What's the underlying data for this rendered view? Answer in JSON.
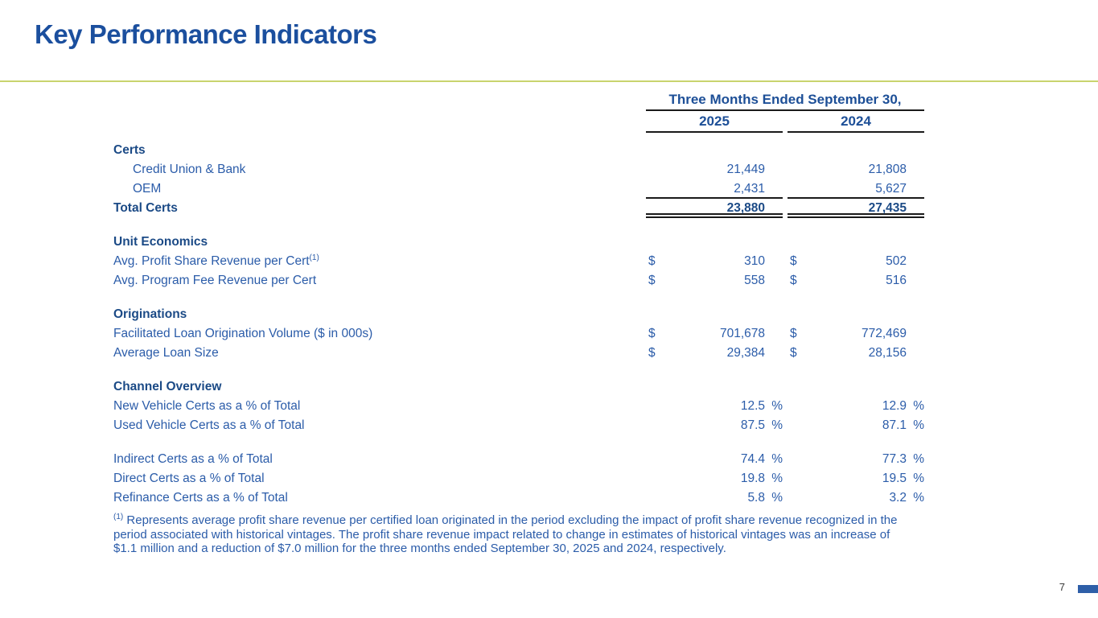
{
  "slide": {
    "title": "Key Performance Indicators",
    "page_number": "7"
  },
  "colors": {
    "title_blue": "#1b4f9e",
    "body_text_blue": "#2b5ca9",
    "bold_text_blue": "#1b4a86",
    "accent_divider_olive": "#c8d46e",
    "table_rule_black": "#1a1a1a",
    "footer_bar_blue": "#2e5fa8"
  },
  "table": {
    "header": {
      "period_label": "Three Months Ended September 30,",
      "col_2025": "2025",
      "col_2024": "2024"
    },
    "rows": [
      {
        "type": "section",
        "label": "Certs"
      },
      {
        "type": "data",
        "indent": true,
        "label": "Credit Union & Bank",
        "v1": "21,449",
        "v2": "21,808"
      },
      {
        "type": "data",
        "indent": true,
        "label": "OEM",
        "v1": "2,431",
        "v2": "5,627",
        "rule_below": true
      },
      {
        "type": "total",
        "label": "Total Certs",
        "v1": "23,880",
        "v2": "27,435"
      },
      {
        "type": "spacer"
      },
      {
        "type": "section",
        "label": "Unit Economics"
      },
      {
        "type": "data",
        "label": "Avg. Profit Share Revenue per Cert",
        "sup": "(1)",
        "d": "$",
        "v1": "310",
        "v2": "502"
      },
      {
        "type": "data",
        "label": "Avg. Program Fee Revenue per Cert",
        "d": "$",
        "v1": "558",
        "v2": "516"
      },
      {
        "type": "spacer"
      },
      {
        "type": "section",
        "label": "Originations"
      },
      {
        "type": "data",
        "label": "Facilitated Loan Origination Volume ($ in 000s)",
        "d": "$",
        "v1": "701,678",
        "v2": "772,469"
      },
      {
        "type": "data",
        "label": "Average Loan Size",
        "d": "$",
        "v1": "29,384",
        "v2": "28,156"
      },
      {
        "type": "spacer"
      },
      {
        "type": "section",
        "label": "Channel Overview"
      },
      {
        "type": "data",
        "label": "New Vehicle Certs as a % of Total",
        "v1": "12.5",
        "p": "%",
        "v2": "12.9"
      },
      {
        "type": "data",
        "label": "Used Vehicle Certs as a % of Total",
        "v1": "87.5",
        "p": "%",
        "v2": "87.1"
      },
      {
        "type": "spacer"
      },
      {
        "type": "data",
        "label": "Indirect Certs as a % of Total",
        "v1": "74.4",
        "p": "%",
        "v2": "77.3"
      },
      {
        "type": "data",
        "label": "Direct Certs as a % of Total",
        "v1": "19.8",
        "p": "%",
        "v2": "19.5"
      },
      {
        "type": "data",
        "label": "Refinance Certs as a % of Total",
        "v1": "5.8",
        "p": "%",
        "v2": "3.2"
      }
    ]
  },
  "footnote": {
    "marker": "(1)",
    "text": "Represents average profit share revenue per certified loan originated in the period excluding the impact of profit share revenue recognized in the period associated with historical vintages. The profit share revenue impact related to change in estimates of historical vintages was an increase of $1.1 million and a reduction of $7.0 million for the three months ended September 30, 2025 and 2024, respectively."
  }
}
